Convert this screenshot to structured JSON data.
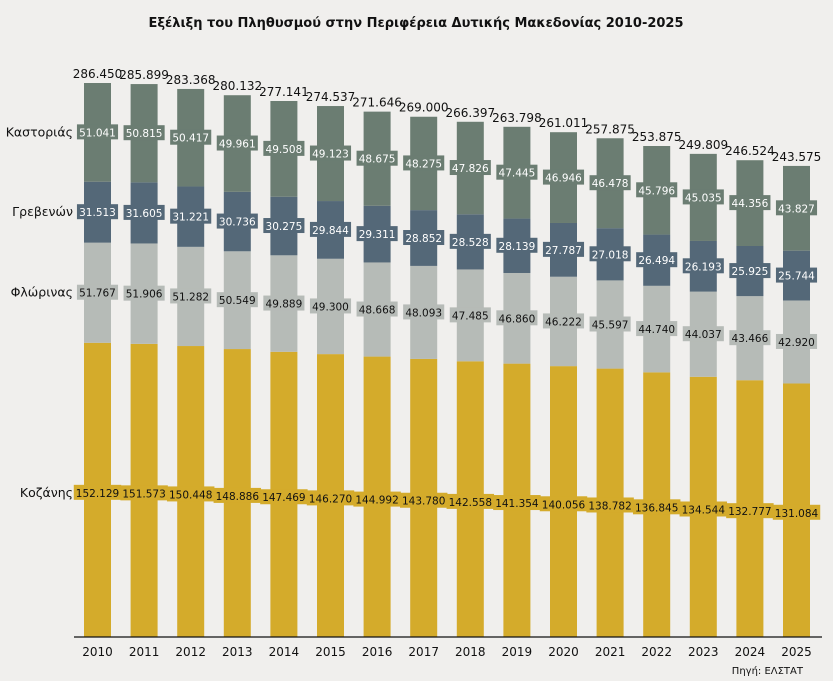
{
  "chart_data": {
    "type": "bar",
    "stacked": true,
    "title": "Εξέλιξη του Πληθυσμού στην Περιφέρεια Δυτικής Μακεδονίας 2010-2025",
    "source": "Πηγή: ΕΛΣΤΑΤ",
    "xlabel": "",
    "ylabel": "",
    "ylim": [
      0,
      290000
    ],
    "grid": false,
    "legend": "left (series names beside first bar)",
    "categories": [
      "2010",
      "2011",
      "2012",
      "2013",
      "2014",
      "2015",
      "2016",
      "2017",
      "2018",
      "2019",
      "2020",
      "2021",
      "2022",
      "2023",
      "2024",
      "2025"
    ],
    "series": [
      {
        "name": "Κοζάνης",
        "color": "#d4ab2b",
        "label_text_color": "#111111",
        "values": [
          152129,
          151573,
          150448,
          148886,
          147469,
          146270,
          144992,
          143780,
          142558,
          141354,
          140056,
          138782,
          136845,
          134544,
          132777,
          131084
        ],
        "labels": [
          "152.129",
          "151.573",
          "150.448",
          "148.886",
          "147.469",
          "146.270",
          "144.992",
          "143.780",
          "142.558",
          "141.354",
          "140.056",
          "138.782",
          "136.845",
          "134.544",
          "132.777",
          "131.084"
        ]
      },
      {
        "name": "Φλώρινας",
        "color": "#b6bbb7",
        "label_text_color": "#111111",
        "values": [
          51767,
          51906,
          51282,
          50549,
          49889,
          49300,
          48668,
          48093,
          47485,
          46860,
          46222,
          45597,
          44740,
          44037,
          43466,
          42920
        ],
        "labels": [
          "51.767",
          "51.906",
          "51.282",
          "50.549",
          "49.889",
          "49.300",
          "48.668",
          "48.093",
          "47.485",
          "46.860",
          "46.222",
          "45.597",
          "44.740",
          "44.037",
          "43.466",
          "42.920"
        ]
      },
      {
        "name": "Γρεβενών",
        "color": "#546878",
        "label_text_color": "#ffffff",
        "values": [
          31513,
          31605,
          31221,
          30736,
          30275,
          29844,
          29311,
          28852,
          28528,
          28139,
          27787,
          27018,
          26494,
          26193,
          25925,
          25744
        ],
        "labels": [
          "31.513",
          "31.605",
          "31.221",
          "30.736",
          "30.275",
          "29.844",
          "29.311",
          "28.852",
          "28.528",
          "28.139",
          "27.787",
          "27.018",
          "26.494",
          "26.193",
          "25.925",
          "25.744"
        ]
      },
      {
        "name": "Καστοριάς",
        "color": "#6b7d72",
        "label_text_color": "#ffffff",
        "values": [
          51041,
          50815,
          50417,
          49961,
          49508,
          49123,
          48675,
          48275,
          47826,
          47445,
          46946,
          46478,
          45796,
          45035,
          44356,
          43827
        ],
        "labels": [
          "51.041",
          "50.815",
          "50.417",
          "49.961",
          "49.508",
          "49.123",
          "48.675",
          "48.275",
          "47.826",
          "47.445",
          "46.946",
          "46.478",
          "45.796",
          "45.035",
          "44.356",
          "43.827"
        ]
      }
    ],
    "totals": [
      286450,
      285899,
      283368,
      280132,
      277141,
      274537,
      271646,
      269000,
      266397,
      263798,
      261011,
      257875,
      253875,
      249809,
      246524,
      243575
    ],
    "total_labels": [
      "286.450",
      "285.899",
      "283.368",
      "280.132",
      "277.141",
      "274.537",
      "271.646",
      "269.000",
      "266.397",
      "263.798",
      "261.011",
      "257.875",
      "253.875",
      "249.809",
      "246.524",
      "243.575"
    ]
  }
}
